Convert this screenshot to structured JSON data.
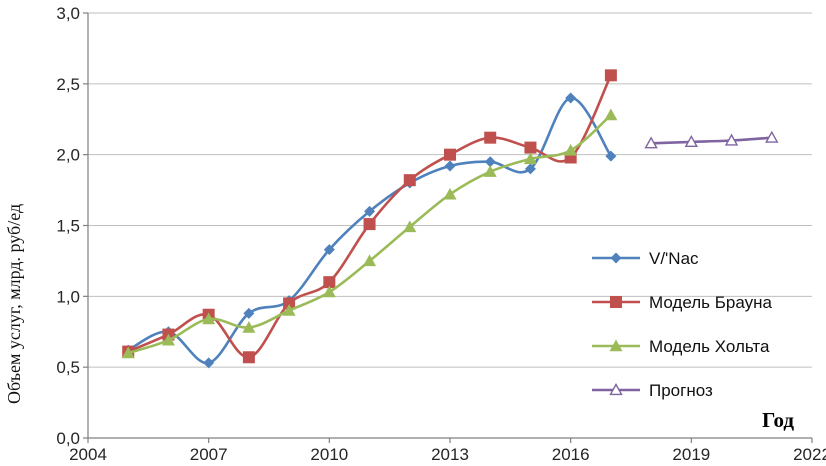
{
  "chart_data": {
    "type": "line",
    "title": "",
    "xlabel": "Год",
    "ylabel": "Объем услуг, млрд. руб/ед",
    "xlim": [
      2004,
      2022
    ],
    "ylim": [
      0.0,
      3.0
    ],
    "grid": "horizontal",
    "legend_position": "inside-right",
    "x_ticks": {
      "values": [
        2004,
        2007,
        2010,
        2013,
        2016,
        2019,
        2022
      ],
      "labels": [
        "2004",
        "2007",
        "2010",
        "2013",
        "2016",
        "2019",
        "2022"
      ]
    },
    "y_ticks": {
      "values": [
        0,
        0.5,
        1,
        1.5,
        2,
        2.5,
        3
      ],
      "labels": [
        "0,0",
        "0,5",
        "1,0",
        "1,5",
        "2,0",
        "2,5",
        "3,0"
      ]
    },
    "colors": {
      "grid": "#BFBFBF",
      "axis": "#808080",
      "tick_text": "#262626"
    },
    "series": [
      {
        "name": "V/'Nac",
        "marker": "diamond",
        "color": "#4F81BD",
        "x": [
          2005,
          2006,
          2007,
          2008,
          2009,
          2010,
          2011,
          2012,
          2013,
          2014,
          2015,
          2016,
          2017
        ],
        "values": [
          0.62,
          0.75,
          0.53,
          0.88,
          0.97,
          1.33,
          1.6,
          1.8,
          1.92,
          1.95,
          1.9,
          2.4,
          1.99
        ]
      },
      {
        "name": "Модель Брауна",
        "marker": "square",
        "color": "#C0504D",
        "x": [
          2005,
          2006,
          2007,
          2008,
          2009,
          2010,
          2011,
          2012,
          2013,
          2014,
          2015,
          2016,
          2017
        ],
        "values": [
          0.61,
          0.73,
          0.87,
          0.57,
          0.95,
          1.1,
          1.51,
          1.82,
          2.0,
          2.12,
          2.05,
          1.98,
          2.56
        ]
      },
      {
        "name": "Модель Хольта",
        "marker": "triangle",
        "color": "#9BBB59",
        "x": [
          2005,
          2006,
          2007,
          2008,
          2009,
          2010,
          2011,
          2012,
          2013,
          2014,
          2015,
          2016,
          2017
        ],
        "values": [
          0.6,
          0.69,
          0.84,
          0.78,
          0.9,
          1.03,
          1.25,
          1.49,
          1.72,
          1.88,
          1.97,
          2.03,
          2.28
        ]
      },
      {
        "name": "Прогноз",
        "marker": "triangle-open",
        "color": "#8064A2",
        "x": [
          2018,
          2019,
          2020,
          2021
        ],
        "values": [
          2.08,
          2.09,
          2.1,
          2.12
        ]
      }
    ]
  }
}
